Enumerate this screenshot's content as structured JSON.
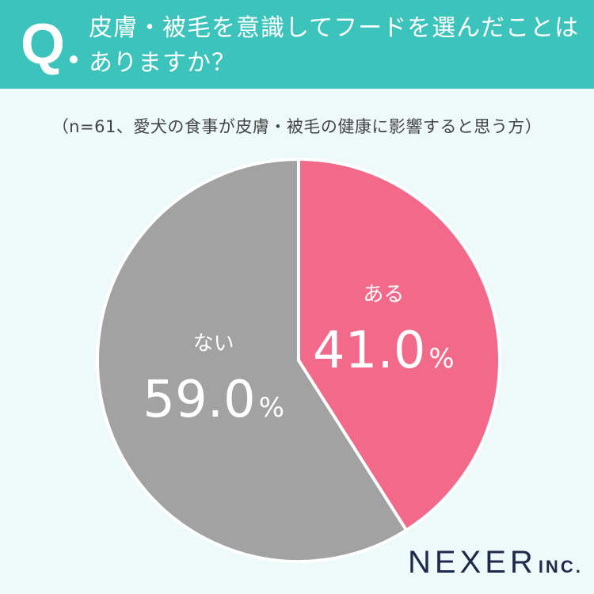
{
  "header": {
    "q_mark": "Q",
    "question_line1": "皮膚・被毛を意識してフードを選んだことは",
    "question_line2": "ありますか？"
  },
  "chart_data": {
    "type": "pie",
    "subtitle": "（n=61、愛犬の食事が皮膚・被毛の健康に影響すると思う方）",
    "unit": "%",
    "slices": [
      {
        "label": "ある",
        "value": 41.0,
        "display": "41.0",
        "color": "#f2698a"
      },
      {
        "label": "ない",
        "value": 59.0,
        "display": "59.0",
        "color": "#a2a2a2"
      }
    ]
  },
  "colors": {
    "header_bg": "#3cc3bb",
    "page_bg": "#eefaf9",
    "brand": "#1f2b4d"
  },
  "brand": {
    "name": "NEXER",
    "suffix": "INC."
  }
}
